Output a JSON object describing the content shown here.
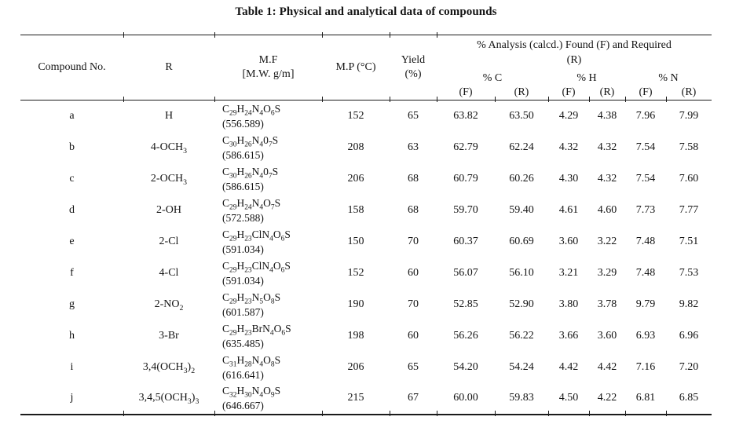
{
  "title": "Table 1: Physical and analytical data of compounds",
  "colors": {
    "text": "#141414",
    "background": "#ffffff",
    "rule": "#1b1b1b"
  },
  "table": {
    "headers": {
      "compound_no": "Compound No.",
      "r": "R",
      "mf_line1": "M.F",
      "mf_line2": "[M.W. g/m]",
      "mp": "M.P (°C)",
      "yield_line1": "Yield",
      "yield_line2": "(%)",
      "analysis_spanner_line1": "% Analysis (calcd.)  Found (F) and Required",
      "analysis_spanner_line2": "(R)",
      "pct_c": "% C",
      "pct_h": "% H",
      "pct_n": "% N",
      "found": "(F)",
      "required": "(R)"
    },
    "rows": [
      {
        "no": "a",
        "r": [
          [
            "H",
            ""
          ]
        ],
        "formula": [
          [
            "C",
            "29"
          ],
          [
            "H",
            "24"
          ],
          [
            "N",
            "4"
          ],
          [
            "O",
            "6"
          ],
          [
            "S",
            ""
          ]
        ],
        "mw": "(556.589)",
        "mp": "152",
        "yield": "65",
        "c_f": "63.82",
        "c_r": "63.50",
        "h_f": "4.29",
        "h_r": "4.38",
        "n_f": "7.96",
        "n_r": "7.99"
      },
      {
        "no": "b",
        "r": [
          [
            "4-OCH",
            "3"
          ]
        ],
        "formula": [
          [
            "C",
            "30"
          ],
          [
            "H",
            "26"
          ],
          [
            "N",
            "4"
          ],
          [
            "0",
            "7"
          ],
          [
            "S",
            ""
          ]
        ],
        "mw": "(586.615)",
        "mp": "208",
        "yield": "63",
        "c_f": "62.79",
        "c_r": "62.24",
        "h_f": "4.32",
        "h_r": "4.32",
        "n_f": "7.54",
        "n_r": "7.58"
      },
      {
        "no": "c",
        "r": [
          [
            "2-OCH",
            "3"
          ]
        ],
        "formula": [
          [
            "C",
            "30"
          ],
          [
            "H",
            "26"
          ],
          [
            "N",
            "4"
          ],
          [
            "0",
            "7"
          ],
          [
            "S",
            ""
          ]
        ],
        "mw": "(586.615)",
        "mp": "206",
        "yield": "68",
        "c_f": "60.79",
        "c_r": "60.26",
        "h_f": "4.30",
        "h_r": "4.32",
        "n_f": "7.54",
        "n_r": "7.60"
      },
      {
        "no": "d",
        "r": [
          [
            "2-OH",
            ""
          ]
        ],
        "formula": [
          [
            "C",
            "29"
          ],
          [
            "H",
            "24"
          ],
          [
            "N",
            "4"
          ],
          [
            "O",
            "7"
          ],
          [
            "S",
            ""
          ]
        ],
        "mw": "(572.588)",
        "mp": "158",
        "yield": "68",
        "c_f": "59.70",
        "c_r": "59.40",
        "h_f": "4.61",
        "h_r": "4.60",
        "n_f": "7.73",
        "n_r": "7.77"
      },
      {
        "no": "e",
        "r": [
          [
            "2-Cl",
            ""
          ]
        ],
        "formula": [
          [
            "C",
            "29"
          ],
          [
            "H",
            "23"
          ],
          [
            "ClN",
            "4"
          ],
          [
            "O",
            "6"
          ],
          [
            "S",
            ""
          ]
        ],
        "mw": "(591.034)",
        "mp": "150",
        "yield": "70",
        "c_f": "60.37",
        "c_r": "60.69",
        "h_f": "3.60",
        "h_r": "3.22",
        "n_f": "7.48",
        "n_r": "7.51"
      },
      {
        "no": "f",
        "r": [
          [
            "4-Cl",
            ""
          ]
        ],
        "formula": [
          [
            "C",
            "29"
          ],
          [
            "H",
            "23"
          ],
          [
            "ClN",
            "4"
          ],
          [
            "O",
            "6"
          ],
          [
            "S",
            ""
          ]
        ],
        "mw": "(591.034)",
        "mp": "152",
        "yield": "60",
        "c_f": "56.07",
        "c_r": "56.10",
        "h_f": "3.21",
        "h_r": "3.29",
        "n_f": "7.48",
        "n_r": "7.53"
      },
      {
        "no": "g",
        "r": [
          [
            "2-NO",
            "2"
          ]
        ],
        "formula": [
          [
            "C",
            "29"
          ],
          [
            "H",
            "23"
          ],
          [
            "N",
            "5"
          ],
          [
            "O",
            "8"
          ],
          [
            "S",
            ""
          ]
        ],
        "mw": "(601.587)",
        "mp": "190",
        "yield": "70",
        "c_f": "52.85",
        "c_r": "52.90",
        "h_f": "3.80",
        "h_r": "3.78",
        "n_f": "9.79",
        "n_r": "9.82"
      },
      {
        "no": "h",
        "r": [
          [
            "3-Br",
            ""
          ]
        ],
        "formula": [
          [
            "C",
            "29"
          ],
          [
            "H",
            "23"
          ],
          [
            "BrN",
            "4"
          ],
          [
            "O",
            "6"
          ],
          [
            "S",
            ""
          ]
        ],
        "mw": "(635.485)",
        "mp": "198",
        "yield": "60",
        "c_f": "56.26",
        "c_r": "56.22",
        "h_f": "3.66",
        "h_r": "3.60",
        "n_f": "6.93",
        "n_r": "6.96"
      },
      {
        "no": "i",
        "r": [
          [
            "3,4(OCH",
            "3"
          ],
          [
            ")",
            "2"
          ]
        ],
        "formula": [
          [
            "C",
            "31"
          ],
          [
            "H",
            "28"
          ],
          [
            "N",
            "4"
          ],
          [
            "O",
            "8"
          ],
          [
            "S",
            ""
          ]
        ],
        "mw": "(616.641)",
        "mp": "206",
        "yield": "65",
        "c_f": "54.20",
        "c_r": "54.24",
        "h_f": "4.42",
        "h_r": "4.42",
        "n_f": "7.16",
        "n_r": "7.20"
      },
      {
        "no": "j",
        "r": [
          [
            "3,4,5(OCH",
            "3"
          ],
          [
            ")",
            "3"
          ]
        ],
        "formula": [
          [
            "C",
            "32"
          ],
          [
            "H",
            "30"
          ],
          [
            "N",
            "4"
          ],
          [
            "O",
            "9"
          ],
          [
            "S",
            ""
          ]
        ],
        "mw": "(646.667)",
        "mp": "215",
        "yield": "67",
        "c_f": "60.00",
        "c_r": "59.83",
        "h_f": "4.50",
        "h_r": "4.22",
        "n_f": "6.81",
        "n_r": "6.85"
      }
    ]
  }
}
